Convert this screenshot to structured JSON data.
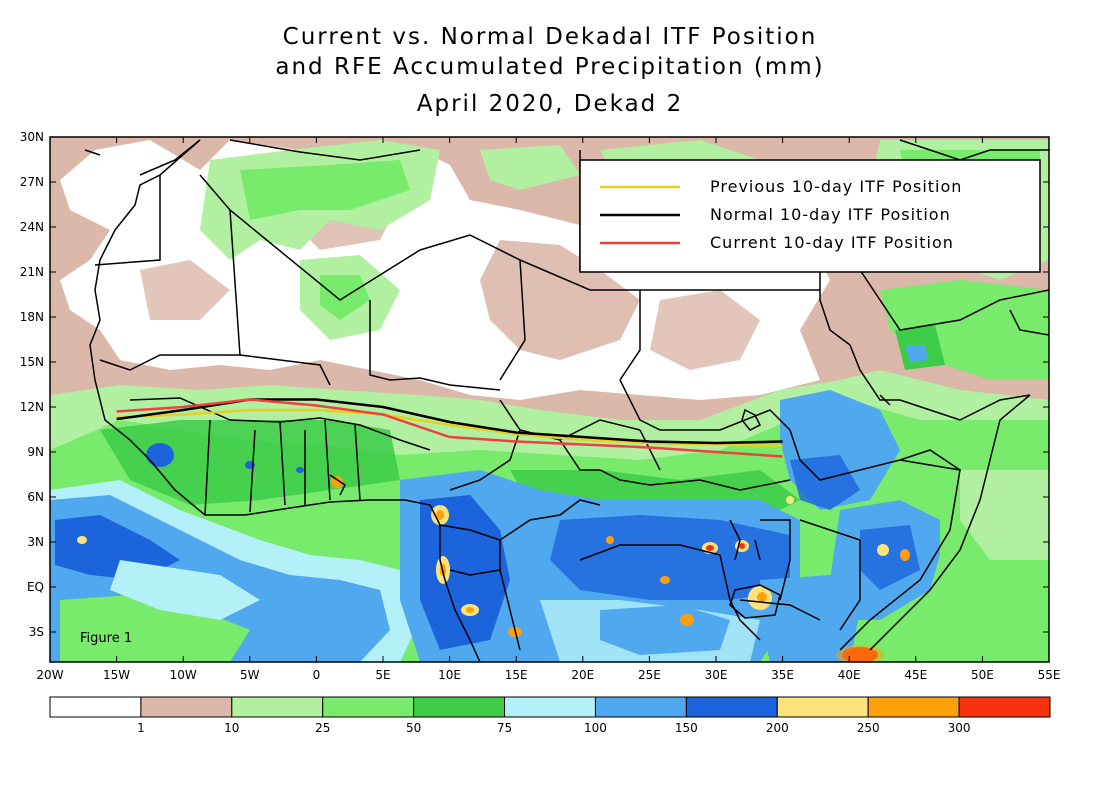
{
  "title": {
    "line1": "Current vs. Normal Dekadal ITF Position",
    "line2": "and RFE Accumulated Precipitation (mm)",
    "line3": "April 2020, Dekad 2"
  },
  "map": {
    "lat_labels": [
      "30N",
      "27N",
      "24N",
      "21N",
      "18N",
      "15N",
      "12N",
      "9N",
      "6N",
      "3N",
      "EQ",
      "3S"
    ],
    "lat_values": [
      30,
      27,
      24,
      21,
      18,
      15,
      12,
      9,
      6,
      3,
      0,
      -3
    ],
    "lon_labels": [
      "20W",
      "15W",
      "10W",
      "5W",
      "0",
      "5E",
      "10E",
      "15E",
      "20E",
      "25E",
      "30E",
      "35E",
      "40E",
      "45E",
      "50E",
      "55E"
    ],
    "lon_values": [
      -20,
      -15,
      -10,
      -5,
      0,
      5,
      10,
      15,
      20,
      25,
      30,
      35,
      40,
      45,
      50,
      55
    ],
    "lat_range": [
      -5,
      30
    ],
    "lon_range": [
      -20,
      55
    ],
    "figure_label": "Figure 1"
  },
  "legend": {
    "items": [
      {
        "label": "Previous 10-day ITF Position",
        "color": "#e8d020"
      },
      {
        "label": "Normal 10-day ITF Position",
        "color": "#000000"
      },
      {
        "label": "Current 10-day ITF Position",
        "color": "#f04040"
      }
    ]
  },
  "itf_lines": {
    "previous": {
      "lon": [
        -15,
        -10,
        -5,
        0,
        5,
        10,
        15,
        20,
        25,
        30,
        35
      ],
      "lat": [
        11.3,
        11.5,
        11.8,
        11.8,
        11.5,
        10.8,
        10.2,
        9.8,
        9.6,
        9.5,
        9.4
      ]
    },
    "normal": {
      "lon": [
        -15,
        -10,
        -5,
        0,
        5,
        10,
        15,
        20,
        25,
        30,
        35
      ],
      "lat": [
        11.2,
        11.8,
        12.5,
        12.5,
        12.0,
        11.0,
        10.3,
        10.0,
        9.7,
        9.6,
        9.7
      ]
    },
    "current": {
      "lon": [
        -15,
        -10,
        -5,
        0,
        5,
        10,
        15,
        20,
        25,
        30,
        35
      ],
      "lat": [
        11.7,
        12.0,
        12.5,
        12.1,
        11.5,
        10.0,
        9.7,
        9.5,
        9.3,
        9.0,
        8.7
      ]
    }
  },
  "colorbar": {
    "ticks": [
      "1",
      "10",
      "25",
      "50",
      "75",
      "100",
      "150",
      "200",
      "250",
      "300"
    ],
    "colors": [
      "#ffffff",
      "#dbb8aa",
      "#b0f0a0",
      "#78ea6c",
      "#3ccc48",
      "#b4f0f8",
      "#50a8ee",
      "#1c64dc",
      "#fce27c",
      "#fea00a",
      "#f83210"
    ]
  }
}
